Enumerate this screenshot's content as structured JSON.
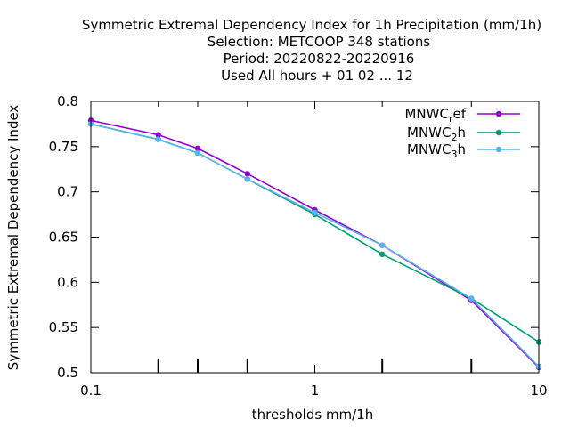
{
  "chart_data": {
    "type": "line",
    "title_lines": [
      "Symmetric Extremal Dependency Index  for 1h Precipitation (mm/1h)",
      "Selection: METCOOP    348 stations",
      "Period: 20220822-20220916",
      "Used  All hours  + 01 02 ... 12"
    ],
    "xlabel": "thresholds mm/1h",
    "ylabel": "Symmetric Extremal Dependency Index",
    "x_scale": "log",
    "xlim": [
      0.1,
      10
    ],
    "ylim": [
      0.5,
      0.8
    ],
    "x_ticks": [
      {
        "value": 0.1,
        "label": "0.1"
      },
      {
        "value": 1,
        "label": "1"
      },
      {
        "value": 10,
        "label": "10"
      }
    ],
    "x_minor_ticks": [
      0.2,
      0.3,
      0.5,
      2,
      5
    ],
    "y_ticks": [
      {
        "value": 0.5,
        "label": "0.5"
      },
      {
        "value": 0.55,
        "label": "0.55"
      },
      {
        "value": 0.6,
        "label": "0.6"
      },
      {
        "value": 0.65,
        "label": "0.65"
      },
      {
        "value": 0.7,
        "label": "0.7"
      },
      {
        "value": 0.75,
        "label": "0.75"
      },
      {
        "value": 0.8,
        "label": "0.8"
      }
    ],
    "grid": false,
    "legend_position": "top-right",
    "series": [
      {
        "name": "MNWC_ref",
        "legend_main": "MNWC",
        "legend_sub": "r",
        "legend_tail": "ef",
        "color": "#9400d3",
        "x": [
          0.1,
          0.2,
          0.3,
          0.5,
          1,
          2,
          5,
          10
        ],
        "y": [
          0.779,
          0.763,
          0.748,
          0.72,
          0.68,
          0.641,
          0.58,
          0.506
        ]
      },
      {
        "name": "MNWC_2h",
        "legend_main": "MNWC",
        "legend_sub": "2",
        "legend_tail": "h",
        "color": "#009e73",
        "x": [
          0.1,
          0.2,
          0.3,
          0.5,
          1,
          2,
          5,
          10
        ],
        "y": [
          0.775,
          0.758,
          0.743,
          0.714,
          0.675,
          0.631,
          0.582,
          0.534
        ]
      },
      {
        "name": "MNWC_3h",
        "legend_main": "MNWC",
        "legend_sub": "3",
        "legend_tail": "h",
        "color": "#56b4e9",
        "x": [
          0.1,
          0.2,
          0.3,
          0.5,
          1,
          2,
          5,
          10
        ],
        "y": [
          0.775,
          0.758,
          0.743,
          0.714,
          0.677,
          0.641,
          0.582,
          0.507
        ]
      }
    ]
  }
}
